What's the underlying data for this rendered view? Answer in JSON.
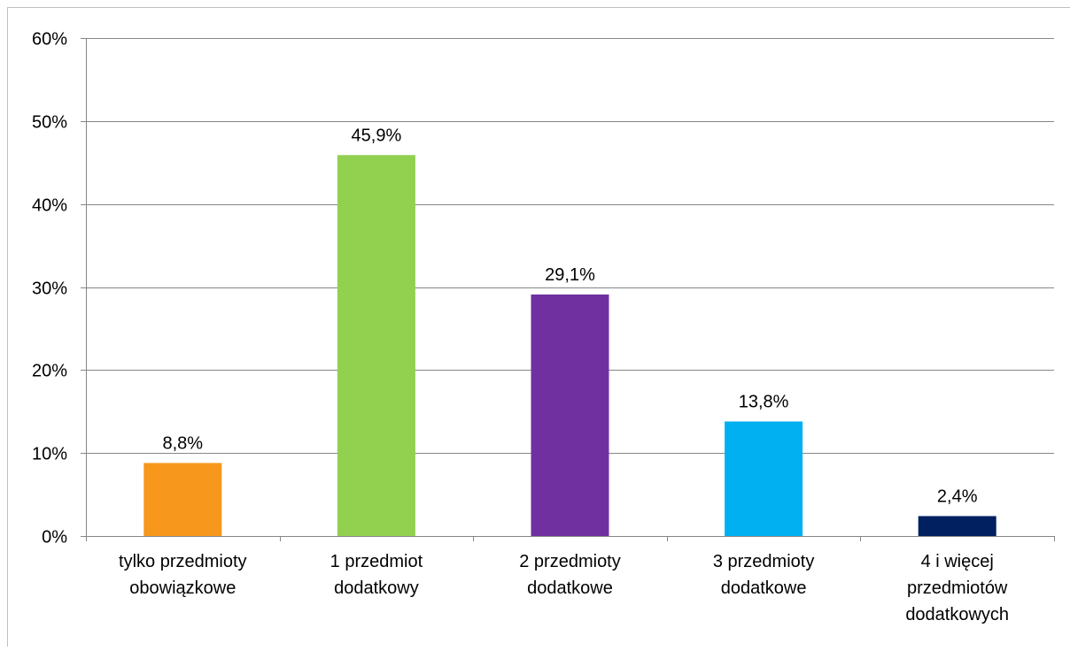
{
  "chart_data": {
    "type": "bar",
    "categories": [
      [
        "tylko przedmioty",
        "obowiązkowe"
      ],
      [
        "1 przedmiot",
        "dodatkowy"
      ],
      [
        "2 przedmioty",
        "dodatkowe"
      ],
      [
        "3 przedmioty",
        "dodatkowe"
      ],
      [
        "4 i więcej",
        "przedmiotów",
        "dodatkowych"
      ]
    ],
    "values": [
      8.8,
      45.9,
      29.1,
      13.8,
      2.4
    ],
    "value_labels": [
      "8,8%",
      "45,9%",
      "29,1%",
      "13,8%",
      "2,4%"
    ],
    "colors": [
      "#F7981D",
      "#92D050",
      "#7030A0",
      "#00B0F0",
      "#002060"
    ],
    "ylim": [
      0,
      60
    ],
    "yticks": [
      0,
      10,
      20,
      30,
      40,
      50,
      60
    ],
    "ytick_labels": [
      "0%",
      "10%",
      "20%",
      "30%",
      "40%",
      "50%",
      "60%"
    ],
    "grid": true,
    "title": "",
    "xlabel": "",
    "ylabel": ""
  }
}
